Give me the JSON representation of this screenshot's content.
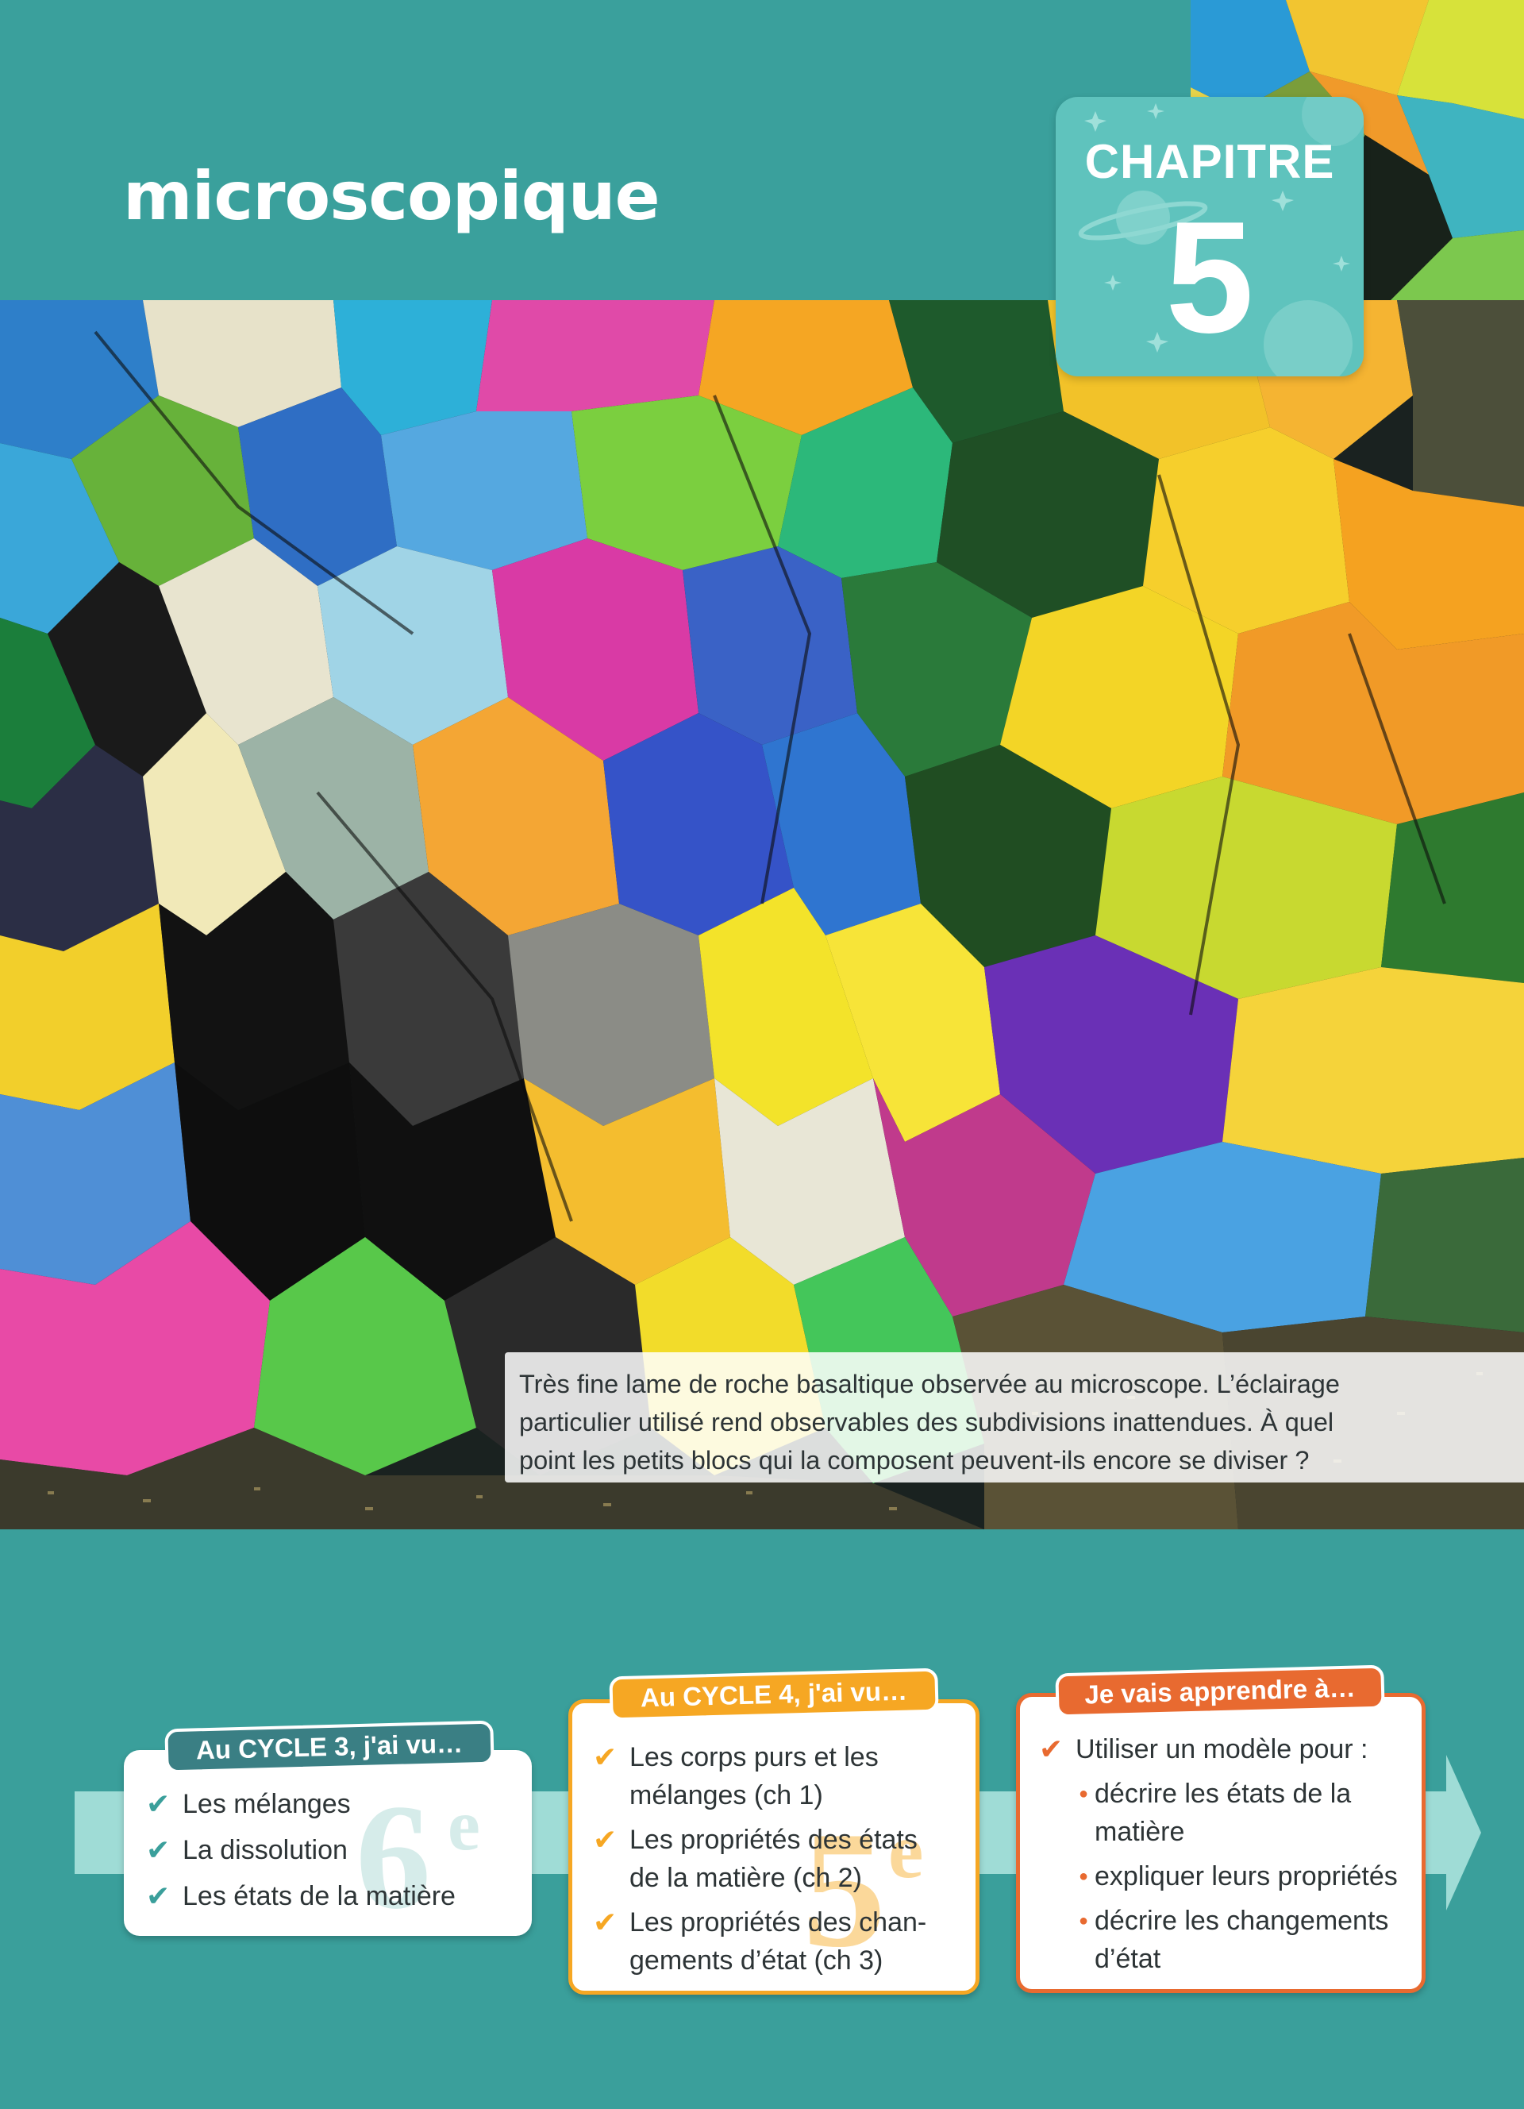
{
  "header": {
    "title": "microscopique"
  },
  "chapter": {
    "label": "CHAPITRE",
    "number": "5"
  },
  "photo": {
    "caption_lines": [
      "Très fine lame de roche basaltique observée au microscope. L’éclairage",
      "particulier utilisé rend observables des subdivisions inattendues. À quel",
      "point les petits blocs qui la composent peuvent-ils encore se diviser ?"
    ]
  },
  "cycle3": {
    "tab": "Au CYCLE 3, j'ai vu…",
    "level": "6",
    "level_sup": "e",
    "items": [
      "Les mélanges",
      "La dissolution",
      "Les états de la matière"
    ]
  },
  "cycle4": {
    "tab": "Au CYCLE 4, j'ai vu…",
    "level": "5",
    "level_sup": "e",
    "items": [
      [
        "Les corps purs et les",
        "mélanges (ch 1)"
      ],
      [
        "Les propriétés des états",
        "de la matière (ch 2)"
      ],
      [
        "Les propriétés des chan-",
        "gements d’état (ch 3)"
      ]
    ]
  },
  "learn": {
    "tab": "Je vais apprendre à…",
    "intro": "Utiliser un modèle pour :",
    "items": [
      [
        "décrire les états de la",
        "matière"
      ],
      [
        "expliquer leurs propriétés"
      ],
      [
        "décrire les changements",
        "d’état"
      ]
    ]
  },
  "colors": {
    "teal": "#3a9f9b",
    "badge": "#5fc3bd",
    "cycle3": "#3a7f84",
    "cycle4": "#f6a723",
    "learn": "#e86a30"
  }
}
